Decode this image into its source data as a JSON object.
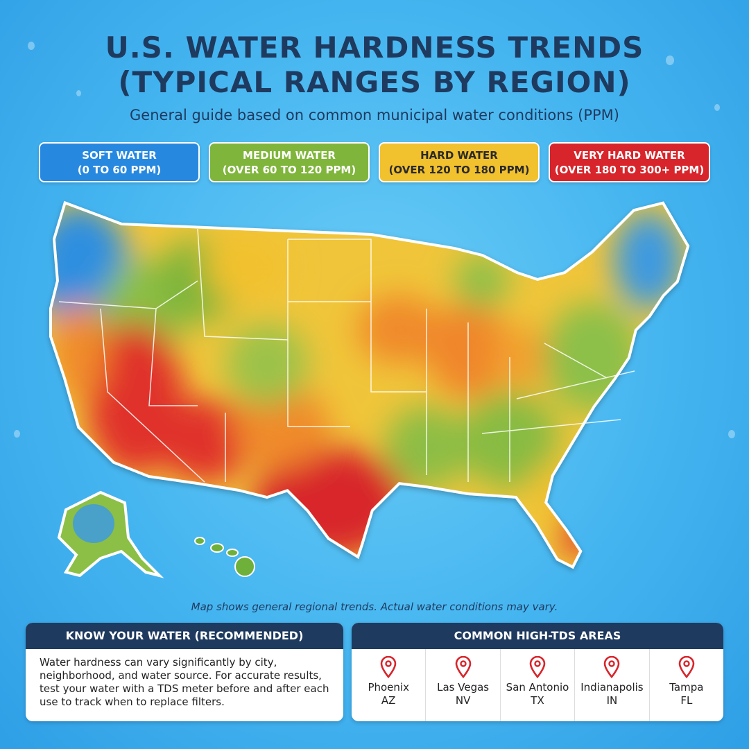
{
  "title_line1": "U.S. WATER HARDNESS TRENDS",
  "title_line2": "(TYPICAL RANGES BY REGION)",
  "subtitle": "General guide based on common municipal water conditions (PPM)",
  "legend": [
    {
      "name": "SOFT WATER",
      "range": "(0 TO 60 PPM)",
      "color": "#2788e0"
    },
    {
      "name": "MEDIUM WATER",
      "range": "(OVER 60 TO 120 PPM)",
      "color": "#7fb53b"
    },
    {
      "name": "HARD WATER",
      "range": "(OVER 120 TO 180 PPM)",
      "color": "#f2c12e"
    },
    {
      "name": "VERY HARD WATER",
      "range": "(OVER 180 TO 300+ PPM)",
      "color": "#d8252b"
    }
  ],
  "note": "Map shows general regional trends. Actual water conditions may vary.",
  "know_your_water": {
    "heading": "KNOW YOUR WATER (RECOMMENDED)",
    "body": "Water hardness can vary significantly by city, neighborhood, and water source. For accurate results, test your water with a TDS meter before and after each use to track when to replace filters."
  },
  "high_tds": {
    "heading": "COMMON HIGH-TDS AREAS",
    "cities": [
      {
        "city": "Phoenix",
        "state": "AZ"
      },
      {
        "city": "Las Vegas",
        "state": "NV"
      },
      {
        "city": "San Antonio",
        "state": "TX"
      },
      {
        "city": "Indianapolis",
        "state": "IN"
      },
      {
        "city": "Tampa",
        "state": "FL"
      }
    ]
  }
}
